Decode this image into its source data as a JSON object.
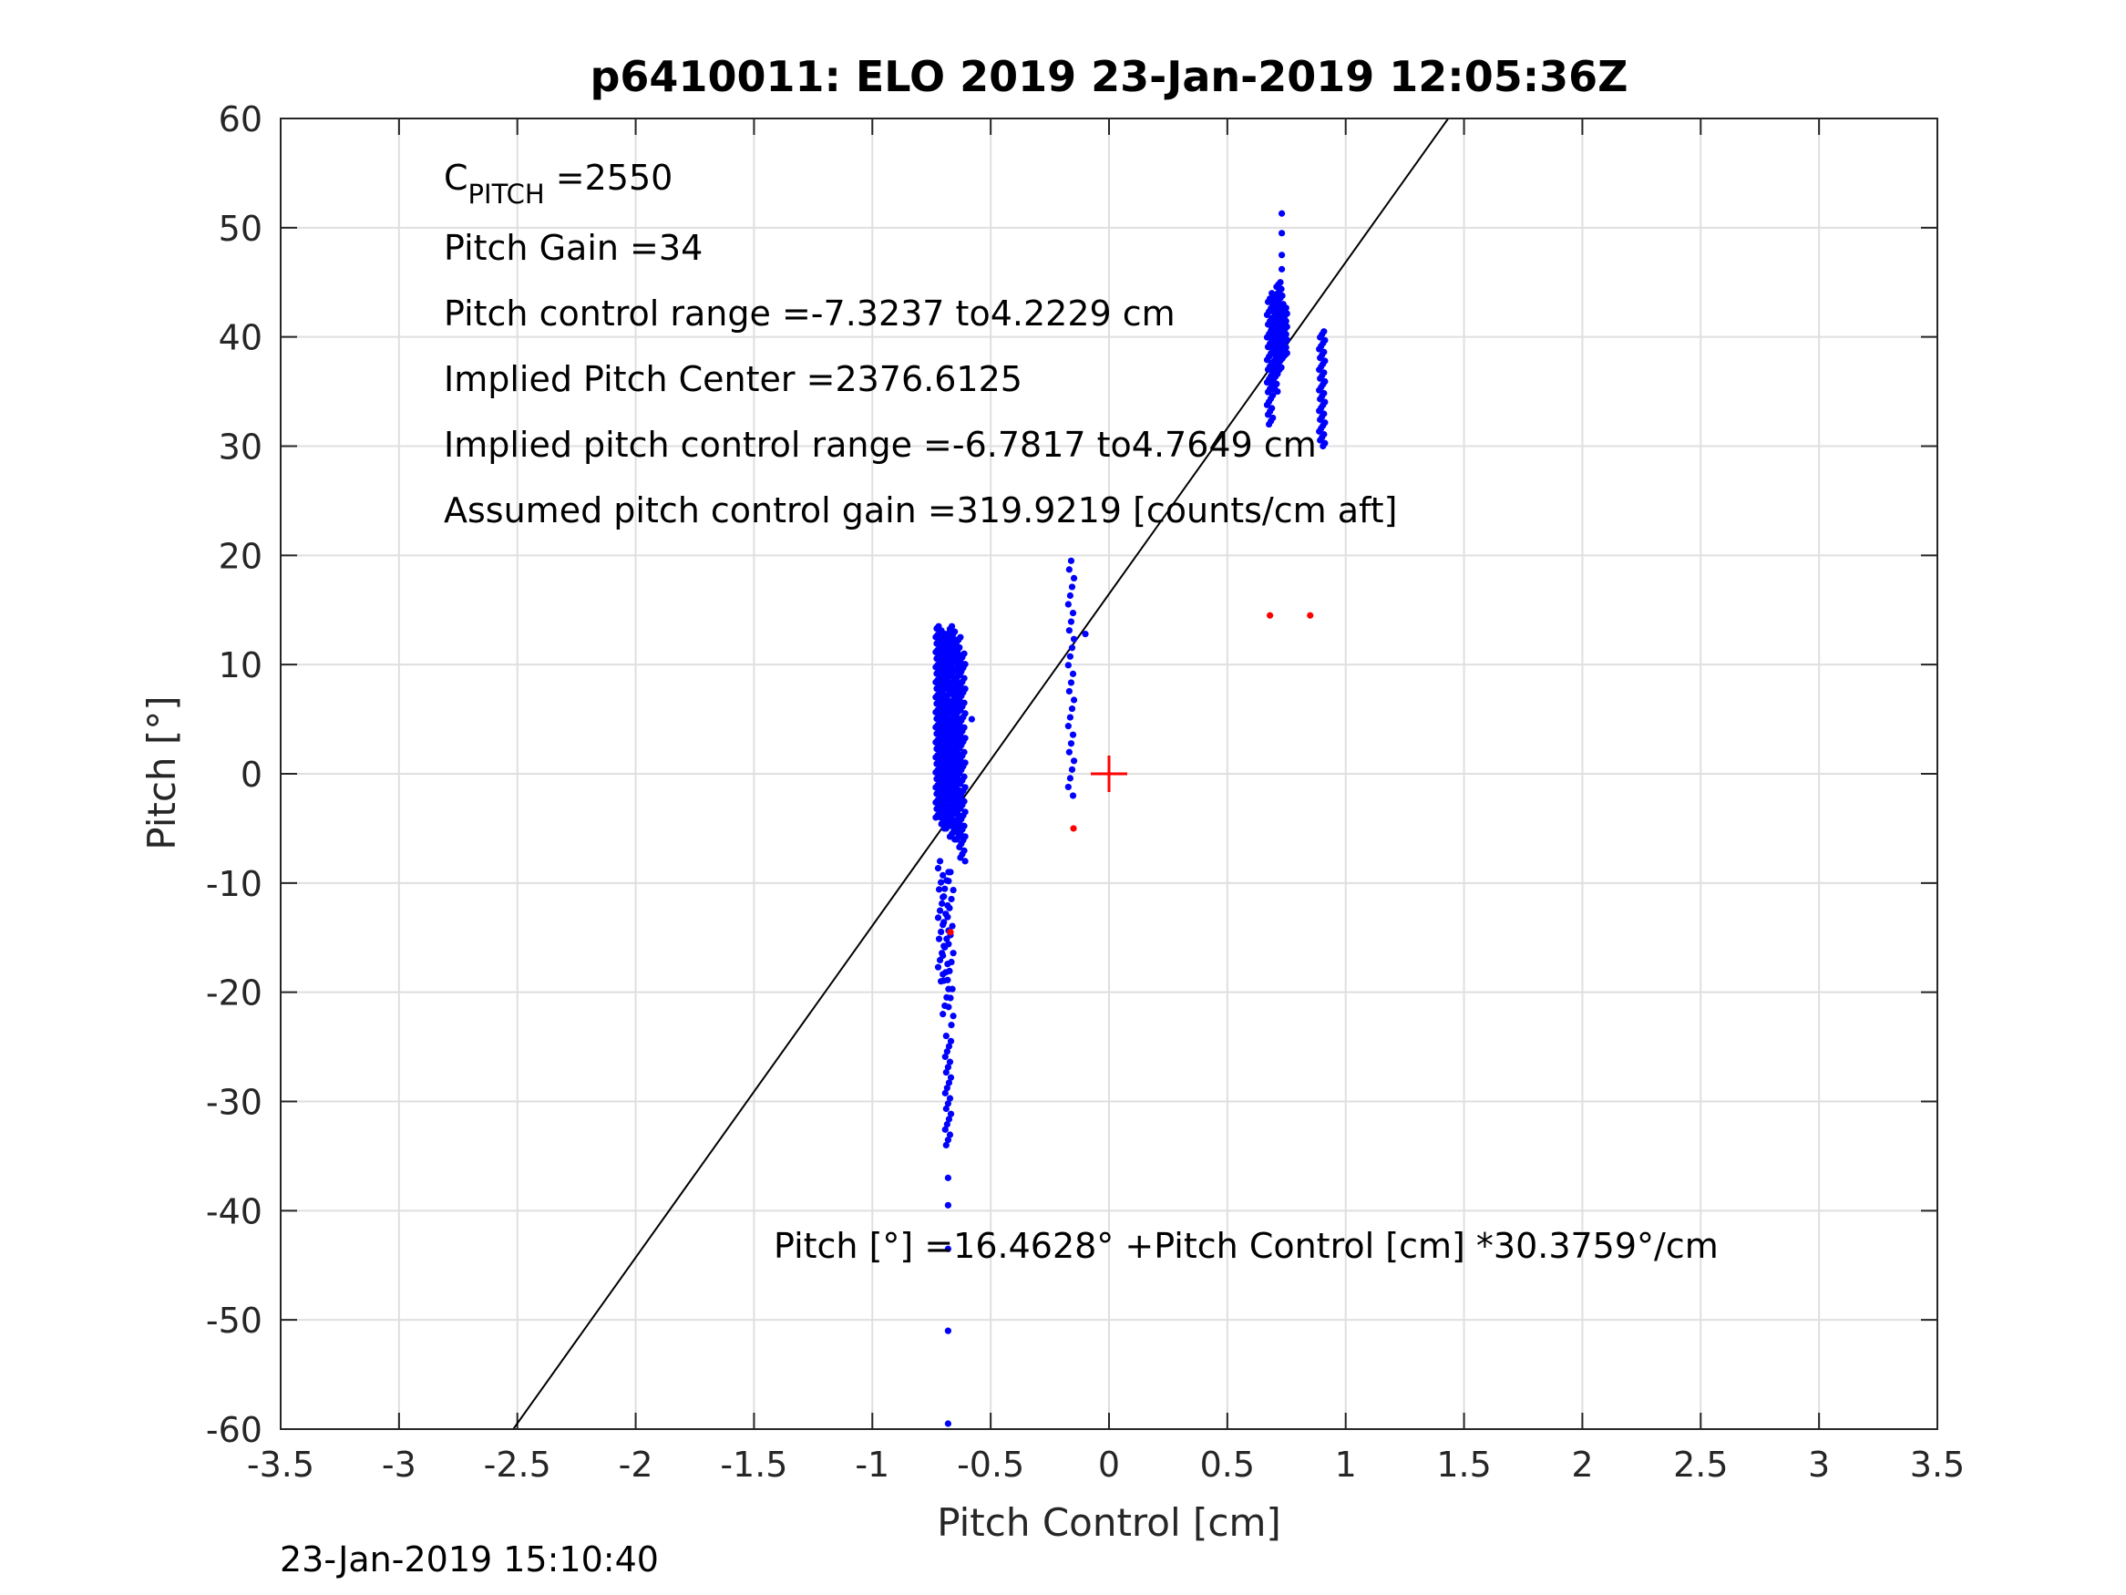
{
  "chart_data": {
    "type": "scatter",
    "title": "p6410011: ELO 2019 23-Jan-2019 12:05:36Z",
    "xlabel": "Pitch Control [cm]",
    "ylabel": "Pitch [°]",
    "xlim": [
      -3.5,
      3.5
    ],
    "ylim": [
      -60,
      60
    ],
    "xticks": [
      -3.5,
      -3,
      -2.5,
      -2,
      -1.5,
      -1,
      -0.5,
      0,
      0.5,
      1,
      1.5,
      2,
      2.5,
      3,
      3.5
    ],
    "xtick_labels": [
      "-3.5",
      "-3",
      "-2.5",
      "-2",
      "-1.5",
      "-1",
      "-0.5",
      "0",
      "0.5",
      "1",
      "1.5",
      "2",
      "2.5",
      "3",
      "3.5"
    ],
    "yticks": [
      -60,
      -50,
      -40,
      -30,
      -20,
      -10,
      0,
      10,
      20,
      30,
      40,
      50,
      60
    ],
    "ytick_labels": [
      "-60",
      "-50",
      "-40",
      "-30",
      "-20",
      "-10",
      "0",
      "10",
      "20",
      "30",
      "40",
      "50",
      "60"
    ],
    "grid": true,
    "fit_line": {
      "intercept": 16.4628,
      "slope": 30.3759,
      "color": "#000000"
    },
    "center_marker": {
      "x": 0,
      "y": 0,
      "color": "#ff0000"
    },
    "series": [
      {
        "color": "#0000ff",
        "clusters": [
          {
            "x": -0.72,
            "y_min": -4,
            "y_max": 13.5,
            "count": 90
          },
          {
            "x": -0.7,
            "y_min": -5,
            "y_max": 13,
            "count": 90
          },
          {
            "x": -0.68,
            "y_min": -5,
            "y_max": 13,
            "count": 80
          },
          {
            "x": -0.66,
            "y_min": -6,
            "y_max": 13.5,
            "count": 80
          },
          {
            "x": -0.64,
            "y_min": -6,
            "y_max": 12.5,
            "count": 80
          },
          {
            "x": -0.62,
            "y_min": -8,
            "y_max": 11,
            "count": 60
          },
          {
            "x": -0.71,
            "y_min": -19,
            "y_max": -8,
            "count": 18
          },
          {
            "x": -0.69,
            "y_min": -22,
            "y_max": -9,
            "count": 18
          },
          {
            "x": -0.67,
            "y_min": -23,
            "y_max": -9,
            "count": 18
          },
          {
            "x": -0.68,
            "y_min": -34,
            "y_max": -24,
            "count": 22
          },
          {
            "x": -0.16,
            "y_min": -2,
            "y_max": 19.5,
            "count": 28
          },
          {
            "x": 0.68,
            "y_min": 32,
            "y_max": 43.5,
            "count": 40
          },
          {
            "x": 0.7,
            "y_min": 35,
            "y_max": 44,
            "count": 40
          },
          {
            "x": 0.72,
            "y_min": 37,
            "y_max": 45,
            "count": 40
          },
          {
            "x": 0.74,
            "y_min": 38,
            "y_max": 43,
            "count": 30
          },
          {
            "x": 0.9,
            "y_min": 30,
            "y_max": 40.5,
            "count": 40
          }
        ],
        "points": [
          {
            "x": -0.68,
            "y": -37
          },
          {
            "x": -0.68,
            "y": -39.5
          },
          {
            "x": -0.68,
            "y": -43.5
          },
          {
            "x": -0.68,
            "y": -51
          },
          {
            "x": -0.68,
            "y": -59.5
          },
          {
            "x": -0.1,
            "y": 12.8
          },
          {
            "x": 0.73,
            "y": 51.3
          },
          {
            "x": 0.73,
            "y": 49.5
          },
          {
            "x": 0.73,
            "y": 47.5
          },
          {
            "x": 0.73,
            "y": 46.2
          },
          {
            "x": -0.58,
            "y": 5
          }
        ]
      },
      {
        "color": "#ff0000",
        "points": [
          {
            "x": 0.68,
            "y": 14.5
          },
          {
            "x": 0.85,
            "y": 14.5
          },
          {
            "x": -0.15,
            "y": -5
          },
          {
            "x": -0.67,
            "y": -14.5
          }
        ]
      }
    ],
    "annotations": {
      "c_pitch_base": "C",
      "c_pitch_sub": "PITCH",
      "c_pitch_value": " =2550",
      "pitch_gain": "Pitch Gain =34",
      "control_range": "Pitch control range =-7.3237 to4.2229 cm",
      "implied_center": "Implied Pitch Center =2376.6125",
      "implied_range": "Implied pitch control range =-6.7817 to4.7649 cm",
      "assumed_gain": "Assumed pitch control gain =319.9219 [counts/cm aft]",
      "fit_equation": "Pitch [°] =16.4628° +Pitch Control [cm] *30.3759°/cm"
    },
    "timestamp": "23-Jan-2019 15:10:40"
  }
}
